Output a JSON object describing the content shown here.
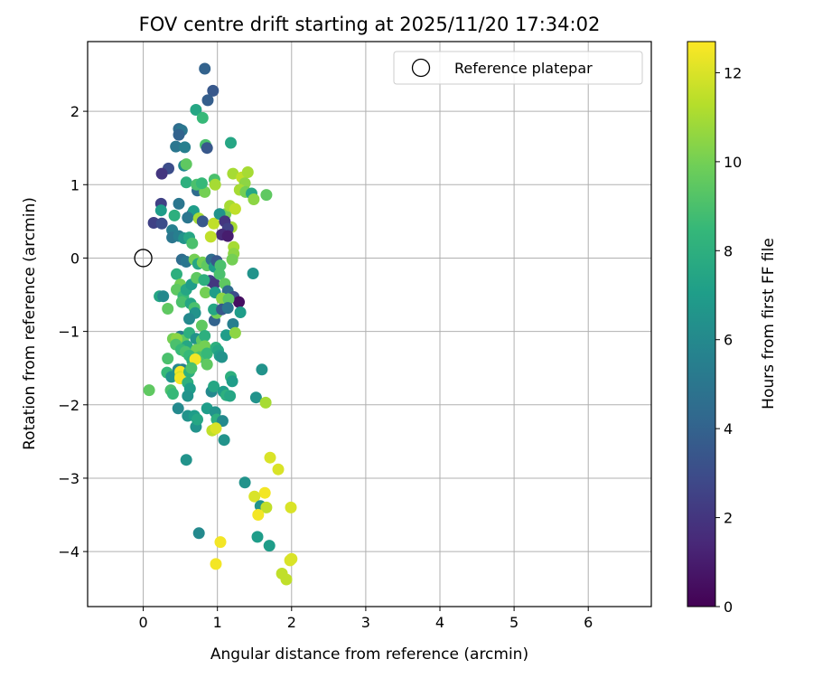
{
  "chart_data": {
    "type": "scatter",
    "title": "FOV centre drift starting at 2025/11/20 17:34:02",
    "xlabel": "Angular distance from reference (arcmin)",
    "ylabel": "Rotation from reference (arcmin)",
    "xlim": [
      -0.75,
      6.85
    ],
    "ylim": [
      -4.75,
      2.95
    ],
    "xticks": [
      0,
      1,
      2,
      3,
      4,
      5,
      6
    ],
    "yticks": [
      2,
      1,
      0,
      -1,
      -2,
      -3,
      -4
    ],
    "xtick_labels": [
      "0",
      "1",
      "2",
      "3",
      "4",
      "5",
      "6"
    ],
    "ytick_labels": [
      "2",
      "1",
      "0",
      "−1",
      "−2",
      "−3",
      "−4"
    ],
    "grid": true,
    "legend": {
      "label": "Reference platepar",
      "position": "top-right"
    },
    "reference_point": {
      "x": 0,
      "y": 0
    },
    "colorbar": {
      "label": "Hours from first FF file",
      "range": [
        0,
        12.7
      ],
      "ticks": [
        0,
        2,
        4,
        6,
        8,
        10,
        12
      ],
      "tick_labels": [
        "0",
        "2",
        "4",
        "6",
        "8",
        "10",
        "12"
      ],
      "colormap": [
        "#440154",
        "#482878",
        "#3e4989",
        "#31688e",
        "#26828e",
        "#1f9e89",
        "#35b779",
        "#6ece58",
        "#b5de2b",
        "#fde725"
      ]
    },
    "points": [
      [
        0.83,
        2.58,
        4.0
      ],
      [
        0.94,
        2.28,
        3.5
      ],
      [
        0.87,
        2.15,
        3.8
      ],
      [
        0.71,
        2.02,
        7.5
      ],
      [
        0.8,
        1.91,
        8.5
      ],
      [
        0.48,
        1.76,
        4.5
      ],
      [
        0.52,
        1.74,
        5.0
      ],
      [
        0.48,
        1.68,
        4.0
      ],
      [
        0.44,
        1.52,
        5.0
      ],
      [
        0.56,
        1.51,
        5.5
      ],
      [
        0.84,
        1.54,
        9.0
      ],
      [
        0.86,
        1.5,
        3.5
      ],
      [
        1.18,
        1.57,
        7.5
      ],
      [
        0.55,
        1.26,
        6.0
      ],
      [
        0.58,
        1.28,
        9.5
      ],
      [
        0.34,
        1.22,
        3.0
      ],
      [
        0.25,
        1.15,
        2.0
      ],
      [
        0.58,
        1.03,
        8.0
      ],
      [
        0.73,
        0.92,
        4.5
      ],
      [
        0.83,
        0.9,
        10.0
      ],
      [
        0.72,
        1.0,
        9.0
      ],
      [
        0.79,
        1.02,
        8.5
      ],
      [
        0.96,
        1.07,
        9.0
      ],
      [
        0.97,
        1.0,
        11.0
      ],
      [
        1.21,
        1.15,
        11.0
      ],
      [
        1.33,
        1.1,
        11.5
      ],
      [
        1.41,
        1.17,
        11.0
      ],
      [
        1.37,
        1.02,
        10.5
      ],
      [
        1.3,
        0.93,
        11.0
      ],
      [
        1.38,
        0.9,
        10.0
      ],
      [
        1.46,
        0.88,
        7.5
      ],
      [
        1.49,
        0.8,
        10.5
      ],
      [
        1.66,
        0.86,
        9.5
      ],
      [
        1.11,
        0.6,
        10.0
      ],
      [
        1.17,
        0.71,
        11.0
      ],
      [
        1.24,
        0.67,
        11.5
      ],
      [
        1.19,
        0.42,
        11.0
      ],
      [
        0.48,
        0.74,
        5.0
      ],
      [
        0.24,
        0.74,
        2.5
      ],
      [
        0.24,
        0.65,
        7.0
      ],
      [
        0.42,
        0.58,
        8.0
      ],
      [
        0.66,
        0.6,
        4.0
      ],
      [
        0.68,
        0.64,
        7.0
      ],
      [
        0.6,
        0.55,
        5.0
      ],
      [
        0.75,
        0.54,
        11.0
      ],
      [
        0.8,
        0.5,
        3.5
      ],
      [
        0.95,
        0.47,
        11.5
      ],
      [
        1.03,
        0.6,
        6.5
      ],
      [
        1.1,
        0.5,
        2.0
      ],
      [
        1.14,
        0.4,
        2.5
      ],
      [
        1.06,
        0.32,
        1.5
      ],
      [
        1.14,
        0.3,
        1.0
      ],
      [
        0.14,
        0.48,
        2.5
      ],
      [
        0.25,
        0.47,
        3.0
      ],
      [
        0.39,
        0.38,
        5.5
      ],
      [
        0.39,
        0.28,
        5.0
      ],
      [
        0.48,
        0.3,
        5.5
      ],
      [
        0.55,
        0.27,
        6.5
      ],
      [
        0.62,
        0.28,
        7.5
      ],
      [
        0.66,
        0.2,
        9.0
      ],
      [
        0.91,
        0.29,
        11.5
      ],
      [
        1.22,
        0.15,
        11.0
      ],
      [
        1.22,
        0.06,
        10.5
      ],
      [
        1.2,
        -0.02,
        10.0
      ],
      [
        0.52,
        -0.02,
        4.5
      ],
      [
        0.58,
        -0.05,
        5.0
      ],
      [
        0.69,
        -0.02,
        10.0
      ],
      [
        0.74,
        -0.08,
        7.5
      ],
      [
        0.8,
        -0.06,
        10.0
      ],
      [
        0.86,
        -0.1,
        9.5
      ],
      [
        0.92,
        -0.02,
        4.5
      ],
      [
        0.96,
        -0.12,
        7.0
      ],
      [
        0.99,
        -0.04,
        3.5
      ],
      [
        1.04,
        -0.1,
        9.0
      ],
      [
        0.9,
        -0.31,
        2.5
      ],
      [
        0.96,
        -0.35,
        2.0
      ],
      [
        1.03,
        -0.22,
        9.0
      ],
      [
        1.1,
        -0.35,
        9.5
      ],
      [
        1.14,
        -0.45,
        4.5
      ],
      [
        1.22,
        -0.53,
        3.0
      ],
      [
        1.29,
        -0.6,
        0.5
      ],
      [
        1.48,
        -0.21,
        6.5
      ],
      [
        0.45,
        -0.22,
        8.0
      ],
      [
        0.5,
        -0.36,
        10.0
      ],
      [
        0.45,
        -0.43,
        9.5
      ],
      [
        0.54,
        -0.52,
        8.5
      ],
      [
        0.58,
        -0.43,
        7.5
      ],
      [
        0.65,
        -0.36,
        7.0
      ],
      [
        0.72,
        -0.27,
        9.5
      ],
      [
        0.82,
        -0.3,
        8.0
      ],
      [
        0.84,
        -0.47,
        10.0
      ],
      [
        0.97,
        -0.47,
        7.0
      ],
      [
        1.06,
        -0.55,
        10.5
      ],
      [
        1.15,
        -0.56,
        9.5
      ],
      [
        0.22,
        -0.52,
        7.5
      ],
      [
        0.27,
        -0.52,
        6.0
      ],
      [
        0.33,
        -0.69,
        9.5
      ],
      [
        0.52,
        -0.6,
        9.0
      ],
      [
        0.64,
        -0.62,
        7.5
      ],
      [
        0.69,
        -0.68,
        9.0
      ],
      [
        0.7,
        -0.75,
        6.5
      ],
      [
        0.62,
        -0.83,
        6.0
      ],
      [
        0.96,
        -0.85,
        4.0
      ],
      [
        0.99,
        -0.75,
        10.0
      ],
      [
        0.95,
        -0.7,
        7.5
      ],
      [
        1.06,
        -0.7,
        3.5
      ],
      [
        1.14,
        -0.68,
        5.0
      ],
      [
        1.31,
        -0.74,
        7.0
      ],
      [
        1.21,
        -0.9,
        5.5
      ],
      [
        0.79,
        -0.92,
        9.5
      ],
      [
        1.12,
        -1.05,
        7.0
      ],
      [
        1.24,
        -1.02,
        10.5
      ],
      [
        0.5,
        -1.07,
        5.5
      ],
      [
        0.54,
        -1.12,
        9.5
      ],
      [
        0.4,
        -1.1,
        10.0
      ],
      [
        0.45,
        -1.1,
        10.5
      ],
      [
        0.44,
        -1.18,
        9.0
      ],
      [
        0.62,
        -1.02,
        8.0
      ],
      [
        0.59,
        -1.2,
        7.5
      ],
      [
        0.71,
        -1.1,
        6.5
      ],
      [
        0.79,
        -1.12,
        9.5
      ],
      [
        0.83,
        -1.06,
        8.0
      ],
      [
        0.51,
        -1.25,
        8.5
      ],
      [
        0.57,
        -1.28,
        9.0
      ],
      [
        0.72,
        -1.25,
        10.0
      ],
      [
        0.62,
        -1.33,
        8.5
      ],
      [
        0.66,
        -1.4,
        8.0
      ],
      [
        0.76,
        -1.35,
        9.0
      ],
      [
        0.83,
        -1.2,
        10.0
      ],
      [
        0.86,
        -1.3,
        8.5
      ],
      [
        0.86,
        -1.45,
        9.5
      ],
      [
        0.7,
        -1.38,
        12.5
      ],
      [
        0.98,
        -1.22,
        8.0
      ],
      [
        1.01,
        -1.26,
        7.5
      ],
      [
        1.03,
        -1.33,
        7.0
      ],
      [
        1.06,
        -1.35,
        6.5
      ],
      [
        0.33,
        -1.37,
        9.0
      ],
      [
        0.47,
        -1.52,
        6.0
      ],
      [
        0.53,
        -1.52,
        5.5
      ],
      [
        0.32,
        -1.56,
        8.5
      ],
      [
        0.38,
        -1.62,
        6.5
      ],
      [
        0.5,
        -1.55,
        12.5
      ],
      [
        0.5,
        -1.62,
        12.0
      ],
      [
        0.5,
        -1.64,
        12.5
      ],
      [
        0.62,
        -1.55,
        8.0
      ],
      [
        0.65,
        -1.5,
        9.0
      ],
      [
        0.08,
        -1.8,
        9.5
      ],
      [
        0.37,
        -1.8,
        9.0
      ],
      [
        0.4,
        -1.85,
        8.5
      ],
      [
        0.6,
        -1.7,
        8.0
      ],
      [
        0.63,
        -1.78,
        7.0
      ],
      [
        0.6,
        -1.88,
        6.5
      ],
      [
        0.92,
        -1.82,
        6.0
      ],
      [
        0.95,
        -1.75,
        7.5
      ],
      [
        1.08,
        -1.82,
        7.0
      ],
      [
        1.12,
        -1.87,
        8.0
      ],
      [
        1.17,
        -1.88,
        7.5
      ],
      [
        1.18,
        -1.62,
        8.0
      ],
      [
        1.2,
        -1.68,
        7.0
      ],
      [
        1.52,
        -1.9,
        6.5
      ],
      [
        1.6,
        -1.52,
        6.5
      ],
      [
        1.65,
        -1.97,
        11.0
      ],
      [
        0.47,
        -2.05,
        6.0
      ],
      [
        0.6,
        -2.15,
        6.5
      ],
      [
        0.69,
        -2.15,
        7.0
      ],
      [
        0.71,
        -2.3,
        6.5
      ],
      [
        0.73,
        -2.2,
        7.5
      ],
      [
        0.86,
        -2.05,
        7.0
      ],
      [
        0.97,
        -2.1,
        6.5
      ],
      [
        0.99,
        -2.2,
        8.0
      ],
      [
        1.07,
        -2.22,
        6.0
      ],
      [
        0.93,
        -2.35,
        11.5
      ],
      [
        0.98,
        -2.32,
        12.0
      ],
      [
        1.09,
        -2.48,
        6.5
      ],
      [
        0.58,
        -2.75,
        6.5
      ],
      [
        1.37,
        -3.06,
        6.5
      ],
      [
        1.71,
        -2.72,
        12.0
      ],
      [
        1.82,
        -2.88,
        12.0
      ],
      [
        1.64,
        -3.2,
        12.5
      ],
      [
        1.5,
        -3.25,
        12.0
      ],
      [
        1.58,
        -3.38,
        6.5
      ],
      [
        1.66,
        -3.4,
        11.5
      ],
      [
        1.99,
        -3.4,
        12.0
      ],
      [
        1.55,
        -3.5,
        12.5
      ],
      [
        0.75,
        -3.75,
        6.0
      ],
      [
        1.54,
        -3.8,
        7.0
      ],
      [
        1.7,
        -3.92,
        7.0
      ],
      [
        1.04,
        -3.87,
        12.5
      ],
      [
        0.98,
        -4.17,
        12.5
      ],
      [
        2.0,
        -4.1,
        12.0
      ],
      [
        1.98,
        -4.12,
        12.0
      ],
      [
        1.87,
        -4.3,
        11.5
      ],
      [
        1.93,
        -4.38,
        11.5
      ]
    ]
  }
}
